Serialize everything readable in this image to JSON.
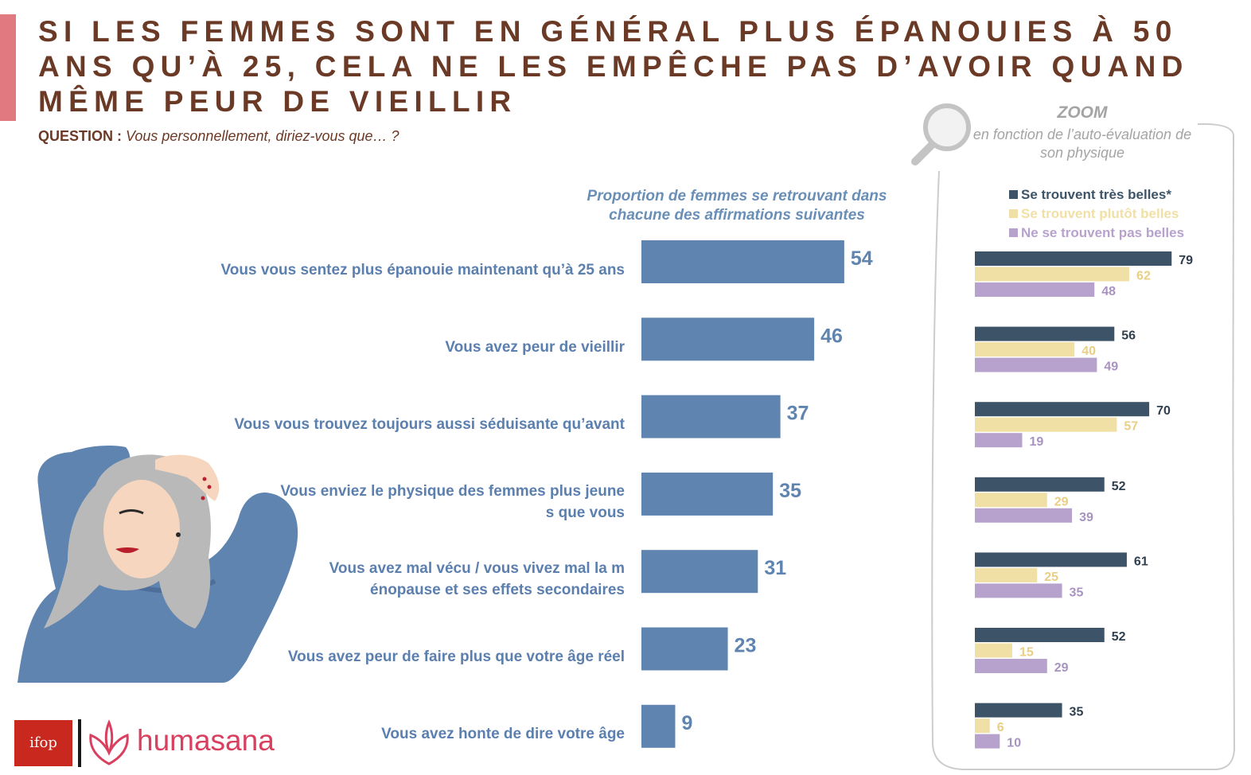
{
  "title": "SI LES FEMMES SONT EN GÉNÉRAL PLUS ÉPANOUIES À 50 ANS QU’À 25, CELA NE LES EMPÊCHE PAS D’AVOIR QUAND MÊME PEUR DE VIEILLIR",
  "question": {
    "label": "QUESTION :",
    "text": "Vous personnellement, diriez-vous que… ?"
  },
  "zoom": {
    "title": "ZOOM",
    "subtitle": "en fonction de l’auto-évaluation de son physique"
  },
  "logos": {
    "ifop": "ifop",
    "humasana": "humasana"
  },
  "colors": {
    "main_bar": "#5f84b0",
    "tres_belles": "#3d5468",
    "plutot_belles": "#f1e0a6",
    "pas_belles": "#b7a2cd",
    "title": "#6b3a26",
    "label": "#5b7fae",
    "accent": "#e07a80"
  },
  "chart_data": [
    {
      "type": "bar",
      "orientation": "horizontal",
      "title": "Proportion de femmes se retrouvant dans chacune des affirmations suivantes",
      "categories": [
        "Vous vous sentez plus épanouie maintenant qu’à 25 ans",
        "Vous avez peur de vieillir",
        "Vous vous trouvez toujours aussi séduisante qu’avant",
        "Vous enviez le physique des femmes plus jeunes que vous",
        "Vous avez mal vécu / vous vivez mal la ménopause et ses effets secondaires",
        "Vous avez peur de faire plus que votre âge réel",
        "Vous avez honte de dire votre âge"
      ],
      "values": [
        54,
        46,
        37,
        35,
        31,
        23,
        9
      ],
      "xlim": [
        0,
        100
      ],
      "grid": false
    },
    {
      "type": "bar",
      "orientation": "horizontal",
      "title": "ZOOM",
      "subtitle": "en fonction de l’auto-évaluation de son physique",
      "series": [
        {
          "name": "Se trouvent très belles*",
          "values": [
            79,
            56,
            70,
            52,
            61,
            52,
            35
          ]
        },
        {
          "name": "Se trouvent plutôt belles",
          "values": [
            62,
            40,
            57,
            29,
            25,
            15,
            6
          ]
        },
        {
          "name": "Ne se trouvent pas belles",
          "values": [
            48,
            49,
            19,
            39,
            35,
            29,
            10
          ]
        }
      ],
      "legend": "top",
      "xlim": [
        0,
        100
      ],
      "grid": false
    }
  ]
}
